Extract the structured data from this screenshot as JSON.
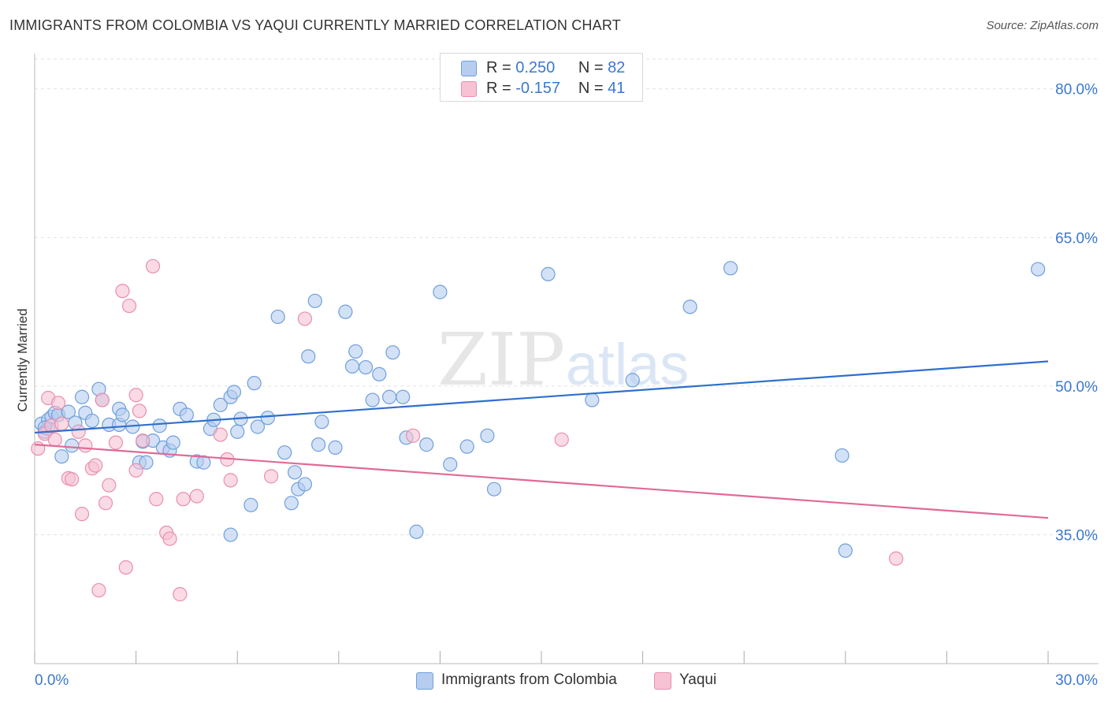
{
  "title": "IMMIGRANTS FROM COLOMBIA VS YAQUI CURRENTLY MARRIED CORRELATION CHART",
  "source": "Source: ZipAtlas.com",
  "legend": {
    "r_label": "R =",
    "n_label": "N =",
    "rows": [
      {
        "r": "0.250",
        "n": "82"
      },
      {
        "r": "-0.157",
        "n": "41"
      }
    ]
  },
  "watermark": {
    "zip": "ZIP",
    "atlas": "atlas"
  },
  "colors": {
    "series1_fill": "#b6cdf0",
    "series1_stroke": "#6f9fdc",
    "series1_line": "#2f6fcd",
    "series2_fill": "#f7c2d3",
    "series2_stroke": "#e98fae",
    "series2_line": "#e06a96",
    "tick_label": "#3b78d0"
  },
  "chart_data": {
    "type": "scatter",
    "title": "IMMIGRANTS FROM COLOMBIA VS YAQUI CURRENTLY MARRIED CORRELATION CHART",
    "xlabel": "",
    "ylabel": "Currently Married",
    "xlim": [
      0,
      30
    ],
    "ylim": [
      22,
      83
    ],
    "x_tick_labels": [
      "0.0%",
      "30.0%"
    ],
    "x_minor_ticks": [
      0,
      3,
      6,
      9,
      12,
      15,
      18,
      21,
      24,
      27,
      30
    ],
    "y_ticks": [
      35,
      50,
      65,
      80
    ],
    "y_tick_labels": [
      "35.0%",
      "50.0%",
      "65.0%",
      "80.0%"
    ],
    "grid": true,
    "legend_position": "top-center and bottom",
    "series": [
      {
        "name": "Immigrants from Colombia",
        "r": 0.25,
        "n": 82,
        "trend": [
          [
            0,
            45.3
          ],
          [
            30,
            52.5
          ]
        ],
        "points": [
          [
            0.2,
            46.2
          ],
          [
            0.3,
            45.4
          ],
          [
            0.4,
            46.6
          ],
          [
            0.4,
            45.7
          ],
          [
            0.5,
            46.9
          ],
          [
            0.6,
            47.3
          ],
          [
            0.7,
            47.1
          ],
          [
            0.8,
            42.9
          ],
          [
            1.0,
            47.4
          ],
          [
            1.1,
            44.0
          ],
          [
            1.2,
            46.3
          ],
          [
            1.4,
            48.9
          ],
          [
            1.5,
            47.3
          ],
          [
            1.7,
            46.5
          ],
          [
            1.9,
            49.7
          ],
          [
            2.0,
            48.6
          ],
          [
            2.2,
            46.1
          ],
          [
            2.5,
            46.1
          ],
          [
            2.5,
            47.7
          ],
          [
            2.6,
            47.1
          ],
          [
            2.9,
            45.9
          ],
          [
            3.1,
            42.3
          ],
          [
            3.2,
            44.4
          ],
          [
            3.3,
            42.3
          ],
          [
            3.5,
            44.5
          ],
          [
            3.7,
            46.0
          ],
          [
            3.8,
            43.8
          ],
          [
            4.0,
            43.5
          ],
          [
            4.1,
            44.3
          ],
          [
            4.3,
            47.7
          ],
          [
            4.5,
            47.1
          ],
          [
            4.8,
            42.4
          ],
          [
            5.0,
            42.3
          ],
          [
            5.2,
            45.7
          ],
          [
            5.3,
            46.6
          ],
          [
            5.5,
            48.1
          ],
          [
            5.8,
            48.9
          ],
          [
            5.8,
            35.0
          ],
          [
            5.9,
            49.4
          ],
          [
            6.0,
            45.4
          ],
          [
            6.1,
            46.7
          ],
          [
            6.4,
            38.0
          ],
          [
            6.5,
            50.3
          ],
          [
            6.6,
            45.9
          ],
          [
            6.9,
            46.8
          ],
          [
            7.2,
            57.0
          ],
          [
            7.4,
            43.3
          ],
          [
            7.6,
            38.2
          ],
          [
            7.7,
            41.3
          ],
          [
            7.8,
            39.6
          ],
          [
            8.0,
            40.1
          ],
          [
            8.1,
            53.0
          ],
          [
            8.3,
            58.6
          ],
          [
            8.4,
            44.1
          ],
          [
            8.5,
            46.4
          ],
          [
            8.9,
            43.8
          ],
          [
            9.2,
            57.5
          ],
          [
            9.4,
            52.0
          ],
          [
            9.5,
            53.5
          ],
          [
            9.8,
            51.9
          ],
          [
            10.0,
            48.6
          ],
          [
            10.2,
            51.2
          ],
          [
            10.5,
            48.9
          ],
          [
            10.6,
            53.4
          ],
          [
            10.9,
            48.9
          ],
          [
            11.0,
            44.8
          ],
          [
            11.3,
            35.3
          ],
          [
            11.6,
            44.1
          ],
          [
            12.0,
            59.5
          ],
          [
            12.3,
            42.1
          ],
          [
            12.8,
            43.9
          ],
          [
            13.4,
            45.0
          ],
          [
            13.6,
            39.6
          ],
          [
            15.2,
            61.3
          ],
          [
            16.5,
            48.6
          ],
          [
            17.7,
            50.6
          ],
          [
            19.4,
            58.0
          ],
          [
            20.6,
            61.9
          ],
          [
            23.9,
            43.0
          ],
          [
            24.0,
            33.4
          ],
          [
            29.7,
            61.8
          ],
          [
            0.3,
            45.8
          ]
        ]
      },
      {
        "name": "Yaqui",
        "r": -0.157,
        "n": 41,
        "trend": [
          [
            0,
            44.1
          ],
          [
            30,
            36.7
          ]
        ],
        "points": [
          [
            0.1,
            43.7
          ],
          [
            0.3,
            45.2
          ],
          [
            0.4,
            48.8
          ],
          [
            0.5,
            46.0
          ],
          [
            0.6,
            44.6
          ],
          [
            0.7,
            48.3
          ],
          [
            0.8,
            46.2
          ],
          [
            1.0,
            40.7
          ],
          [
            1.1,
            40.6
          ],
          [
            1.3,
            45.4
          ],
          [
            1.4,
            37.1
          ],
          [
            1.5,
            44.0
          ],
          [
            1.7,
            41.7
          ],
          [
            1.8,
            42.0
          ],
          [
            1.9,
            29.4
          ],
          [
            2.0,
            48.6
          ],
          [
            2.1,
            38.2
          ],
          [
            2.2,
            40.0
          ],
          [
            2.4,
            44.3
          ],
          [
            2.6,
            59.6
          ],
          [
            2.7,
            31.7
          ],
          [
            2.8,
            58.1
          ],
          [
            3.0,
            49.1
          ],
          [
            3.0,
            41.5
          ],
          [
            3.1,
            47.5
          ],
          [
            3.2,
            44.5
          ],
          [
            3.5,
            62.1
          ],
          [
            3.6,
            38.6
          ],
          [
            3.9,
            35.2
          ],
          [
            4.0,
            34.6
          ],
          [
            4.3,
            29.0
          ],
          [
            4.4,
            38.6
          ],
          [
            4.8,
            38.9
          ],
          [
            5.5,
            45.1
          ],
          [
            5.7,
            42.6
          ],
          [
            5.8,
            40.5
          ],
          [
            7.0,
            40.9
          ],
          [
            8.0,
            56.8
          ],
          [
            11.2,
            45.0
          ],
          [
            15.6,
            44.6
          ],
          [
            25.5,
            32.6
          ]
        ]
      }
    ]
  },
  "bottom_legend": [
    {
      "label": "Immigrants from Colombia"
    },
    {
      "label": "Yaqui"
    }
  ]
}
